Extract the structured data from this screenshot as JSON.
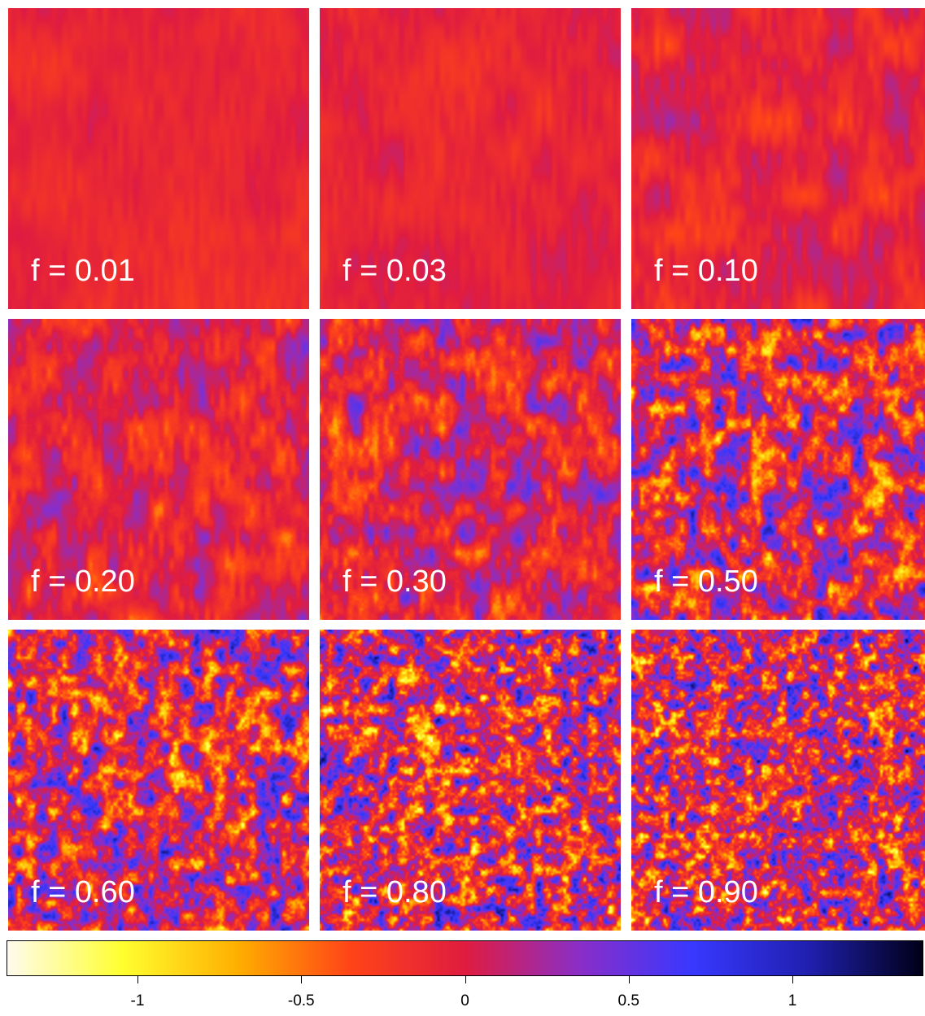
{
  "figure": {
    "panels": [
      {
        "label": "f = 0.01",
        "f": 0.01
      },
      {
        "label": "f = 0.03",
        "f": 0.03
      },
      {
        "label": "f = 0.10",
        "f": 0.1
      },
      {
        "label": "f = 0.20",
        "f": 0.2
      },
      {
        "label": "f = 0.30",
        "f": 0.3
      },
      {
        "label": "f = 0.50",
        "f": 0.5
      },
      {
        "label": "f = 0.60",
        "f": 0.6
      },
      {
        "label": "f = 0.80",
        "f": 0.8
      },
      {
        "label": "f = 0.90",
        "f": 0.9
      }
    ],
    "colorbar": {
      "min": -1.4,
      "max": 1.4,
      "ticks": [
        {
          "value": -1,
          "label": "-1"
        },
        {
          "value": -0.5,
          "label": "-0.5"
        },
        {
          "value": 0,
          "label": "0"
        },
        {
          "value": 0.5,
          "label": "0.5"
        },
        {
          "value": 1,
          "label": "1"
        }
      ],
      "colors": [
        "#fffbee",
        "#ffff30",
        "#ffb000",
        "#ff4418",
        "#e01c40",
        "#8a2ec8",
        "#3838ff",
        "#2020b0",
        "#000018"
      ]
    }
  }
}
